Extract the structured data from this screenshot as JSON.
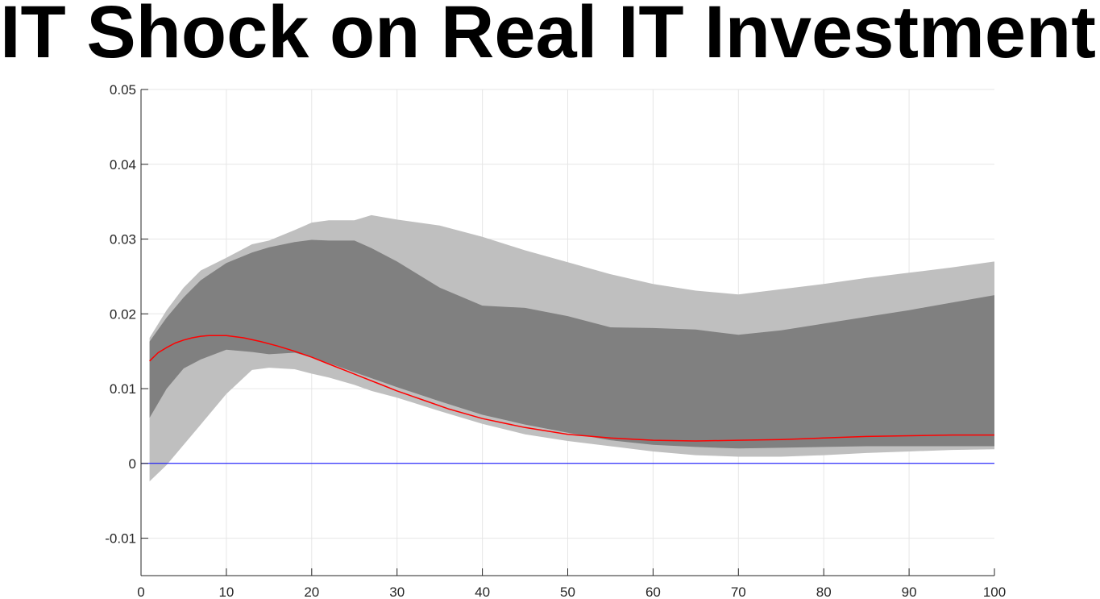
{
  "chart_data": {
    "type": "area",
    "title": "IT Shock on Real IT Investment",
    "xlabel": "",
    "ylabel": "",
    "xlim": [
      0,
      100
    ],
    "ylim": [
      -0.015,
      0.05
    ],
    "xticks": [
      0,
      10,
      20,
      30,
      40,
      50,
      60,
      70,
      80,
      90,
      100
    ],
    "yticks": [
      -0.01,
      0,
      0.01,
      0.02,
      0.03,
      0.04,
      0.05
    ],
    "ytick_labels": [
      "-0.01",
      "0",
      "0.01",
      "0.02",
      "0.03",
      "0.04",
      "0.05"
    ],
    "grid": true,
    "colors": {
      "outer_band": "#bfbfbf",
      "inner_band": "#808080",
      "median_line": "#ff0000",
      "zero_line": "#0000ff",
      "grid": "#e6e6e6",
      "axis": "#262626"
    },
    "bands": [
      {
        "level": "outer",
        "x": [
          1,
          3,
          5,
          7,
          10,
          13,
          15,
          18,
          20,
          22,
          25,
          27,
          30,
          35,
          40,
          45,
          50,
          55,
          60,
          65,
          70,
          75,
          80,
          85,
          90,
          95,
          100
        ],
        "upper": [
          0.0168,
          0.0205,
          0.0235,
          0.0258,
          0.0275,
          0.0293,
          0.0298,
          0.0312,
          0.0322,
          0.0325,
          0.0325,
          0.0332,
          0.0326,
          0.0318,
          0.0303,
          0.0285,
          0.0269,
          0.0253,
          0.024,
          0.0231,
          0.0226,
          0.0233,
          0.024,
          0.0248,
          0.0255,
          0.0262,
          0.027
        ],
        "lower": [
          -0.0024,
          -0.0002,
          0.0025,
          0.0052,
          0.0093,
          0.0125,
          0.0128,
          0.0126,
          0.012,
          0.0115,
          0.0105,
          0.0097,
          0.0088,
          0.007,
          0.0053,
          0.0039,
          0.003,
          0.0023,
          0.0016,
          0.0011,
          0.0009,
          0.0009,
          0.0011,
          0.0014,
          0.0016,
          0.0018,
          0.0019
        ]
      },
      {
        "level": "inner",
        "x": [
          1,
          3,
          5,
          7,
          10,
          13,
          15,
          18,
          20,
          22,
          25,
          27,
          30,
          35,
          40,
          45,
          50,
          55,
          60,
          65,
          70,
          75,
          80,
          85,
          90,
          95,
          100
        ],
        "upper": [
          0.0163,
          0.0195,
          0.0222,
          0.0245,
          0.0268,
          0.0282,
          0.0289,
          0.0296,
          0.0299,
          0.0298,
          0.0298,
          0.0288,
          0.027,
          0.0235,
          0.0211,
          0.0208,
          0.0197,
          0.0182,
          0.0181,
          0.0179,
          0.0172,
          0.0178,
          0.0187,
          0.0196,
          0.0205,
          0.0215,
          0.0225
        ],
        "lower": [
          0.0061,
          0.01,
          0.0127,
          0.0139,
          0.0152,
          0.0149,
          0.0146,
          0.0148,
          0.0142,
          0.0134,
          0.0122,
          0.0114,
          0.0102,
          0.0083,
          0.0065,
          0.0052,
          0.0041,
          0.0031,
          0.0025,
          0.0022,
          0.002,
          0.0021,
          0.0022,
          0.0023,
          0.0023,
          0.0023,
          0.0023
        ]
      }
    ],
    "series": [
      {
        "style": "red-line",
        "x": [
          1,
          2,
          3,
          4,
          5,
          6,
          7,
          8,
          9,
          10,
          12,
          14,
          16,
          18,
          20,
          22,
          24,
          26,
          28,
          30,
          33,
          36,
          40,
          45,
          50,
          55,
          60,
          65,
          70,
          75,
          80,
          85,
          90,
          95,
          100
        ],
        "values": [
          0.0137,
          0.0148,
          0.0155,
          0.0161,
          0.0165,
          0.0168,
          0.017,
          0.0171,
          0.0171,
          0.0171,
          0.0168,
          0.0163,
          0.0157,
          0.015,
          0.0142,
          0.0133,
          0.0124,
          0.0115,
          0.0106,
          0.0097,
          0.0085,
          0.0073,
          0.006,
          0.0048,
          0.0039,
          0.0034,
          0.0031,
          0.003,
          0.0031,
          0.0032,
          0.0034,
          0.0036,
          0.0037,
          0.0038,
          0.0038
        ]
      },
      {
        "style": "zero-line",
        "x": [
          0,
          100
        ],
        "values": [
          0,
          0
        ]
      }
    ]
  }
}
